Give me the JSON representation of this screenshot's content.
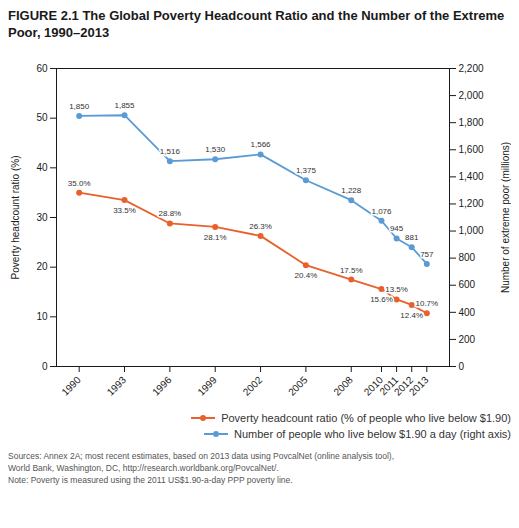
{
  "chart_data": {
    "type": "line",
    "title": "FIGURE 2.1 The Global Poverty Headcount Ratio and the Number of the Extreme Poor, 1990–2013",
    "x": [
      1990,
      1993,
      1996,
      1999,
      2002,
      2005,
      2008,
      2010,
      2011,
      2012,
      2013
    ],
    "xlim": [
      1988.5,
      2014.5
    ],
    "xticks": [
      1990,
      1993,
      1996,
      1999,
      2002,
      2005,
      2008,
      2010,
      2011,
      2012,
      2013
    ],
    "ylabel": "Poverty headcount ratio (%)",
    "ylim": [
      0,
      60
    ],
    "yticks": [
      0,
      10,
      20,
      30,
      40,
      50,
      60
    ],
    "y2label": "Number of extreme poor (millions)",
    "y2lim": [
      0,
      2200
    ],
    "y2ticks": [
      0,
      200,
      400,
      600,
      800,
      {
        "value": 1000,
        "label": "1,000"
      },
      {
        "value": 1200,
        "label": "1,200"
      },
      {
        "value": 1400,
        "label": "1,400"
      },
      {
        "value": 1600,
        "label": "1,600"
      },
      {
        "value": 1800,
        "label": "1,800"
      },
      {
        "value": 2000,
        "label": "2,000"
      },
      {
        "value": 2200,
        "label": "2,200"
      }
    ],
    "series": [
      {
        "name": "Poverty headcount ratio (% of people who live below $1.90)",
        "color": "#E8612C",
        "marker": "circle",
        "values": [
          35.0,
          33.5,
          28.8,
          28.1,
          26.3,
          20.4,
          17.5,
          15.6,
          13.5,
          12.4,
          10.7
        ],
        "value_labels": [
          "35.0%",
          "33.5%",
          "28.8%",
          "28.1%",
          "26.3%",
          "20.4%",
          "17.5%",
          "15.6%",
          "13.5%",
          "12.4%",
          "10.7%"
        ]
      },
      {
        "name": "Number of people who live below $1.90 a day (right axis)",
        "color": "#5B9BD5",
        "marker": "circle",
        "axis": "y2",
        "values": [
          1850,
          1855,
          1516,
          1530,
          1566,
          1375,
          1228,
          1076,
          945,
          881,
          757
        ],
        "value_labels": [
          "1,850",
          "1,855",
          "1,516",
          "1,530",
          "1,566",
          "1,375",
          "1,228",
          "1,076",
          "945",
          "881",
          "757"
        ]
      }
    ],
    "data_labels": true,
    "legend": "bottom",
    "grid": false,
    "caption": "Sources: Annex 2A; most recent estimates, based on 2013 data using PovcalNet (online analysis tool),\nWorld Bank, Washington, DC, http://research.worldbank.org/PovcalNet/.\nNote: Poverty is measured using the 2011 US$1.90-a-day PPP poverty line."
  }
}
